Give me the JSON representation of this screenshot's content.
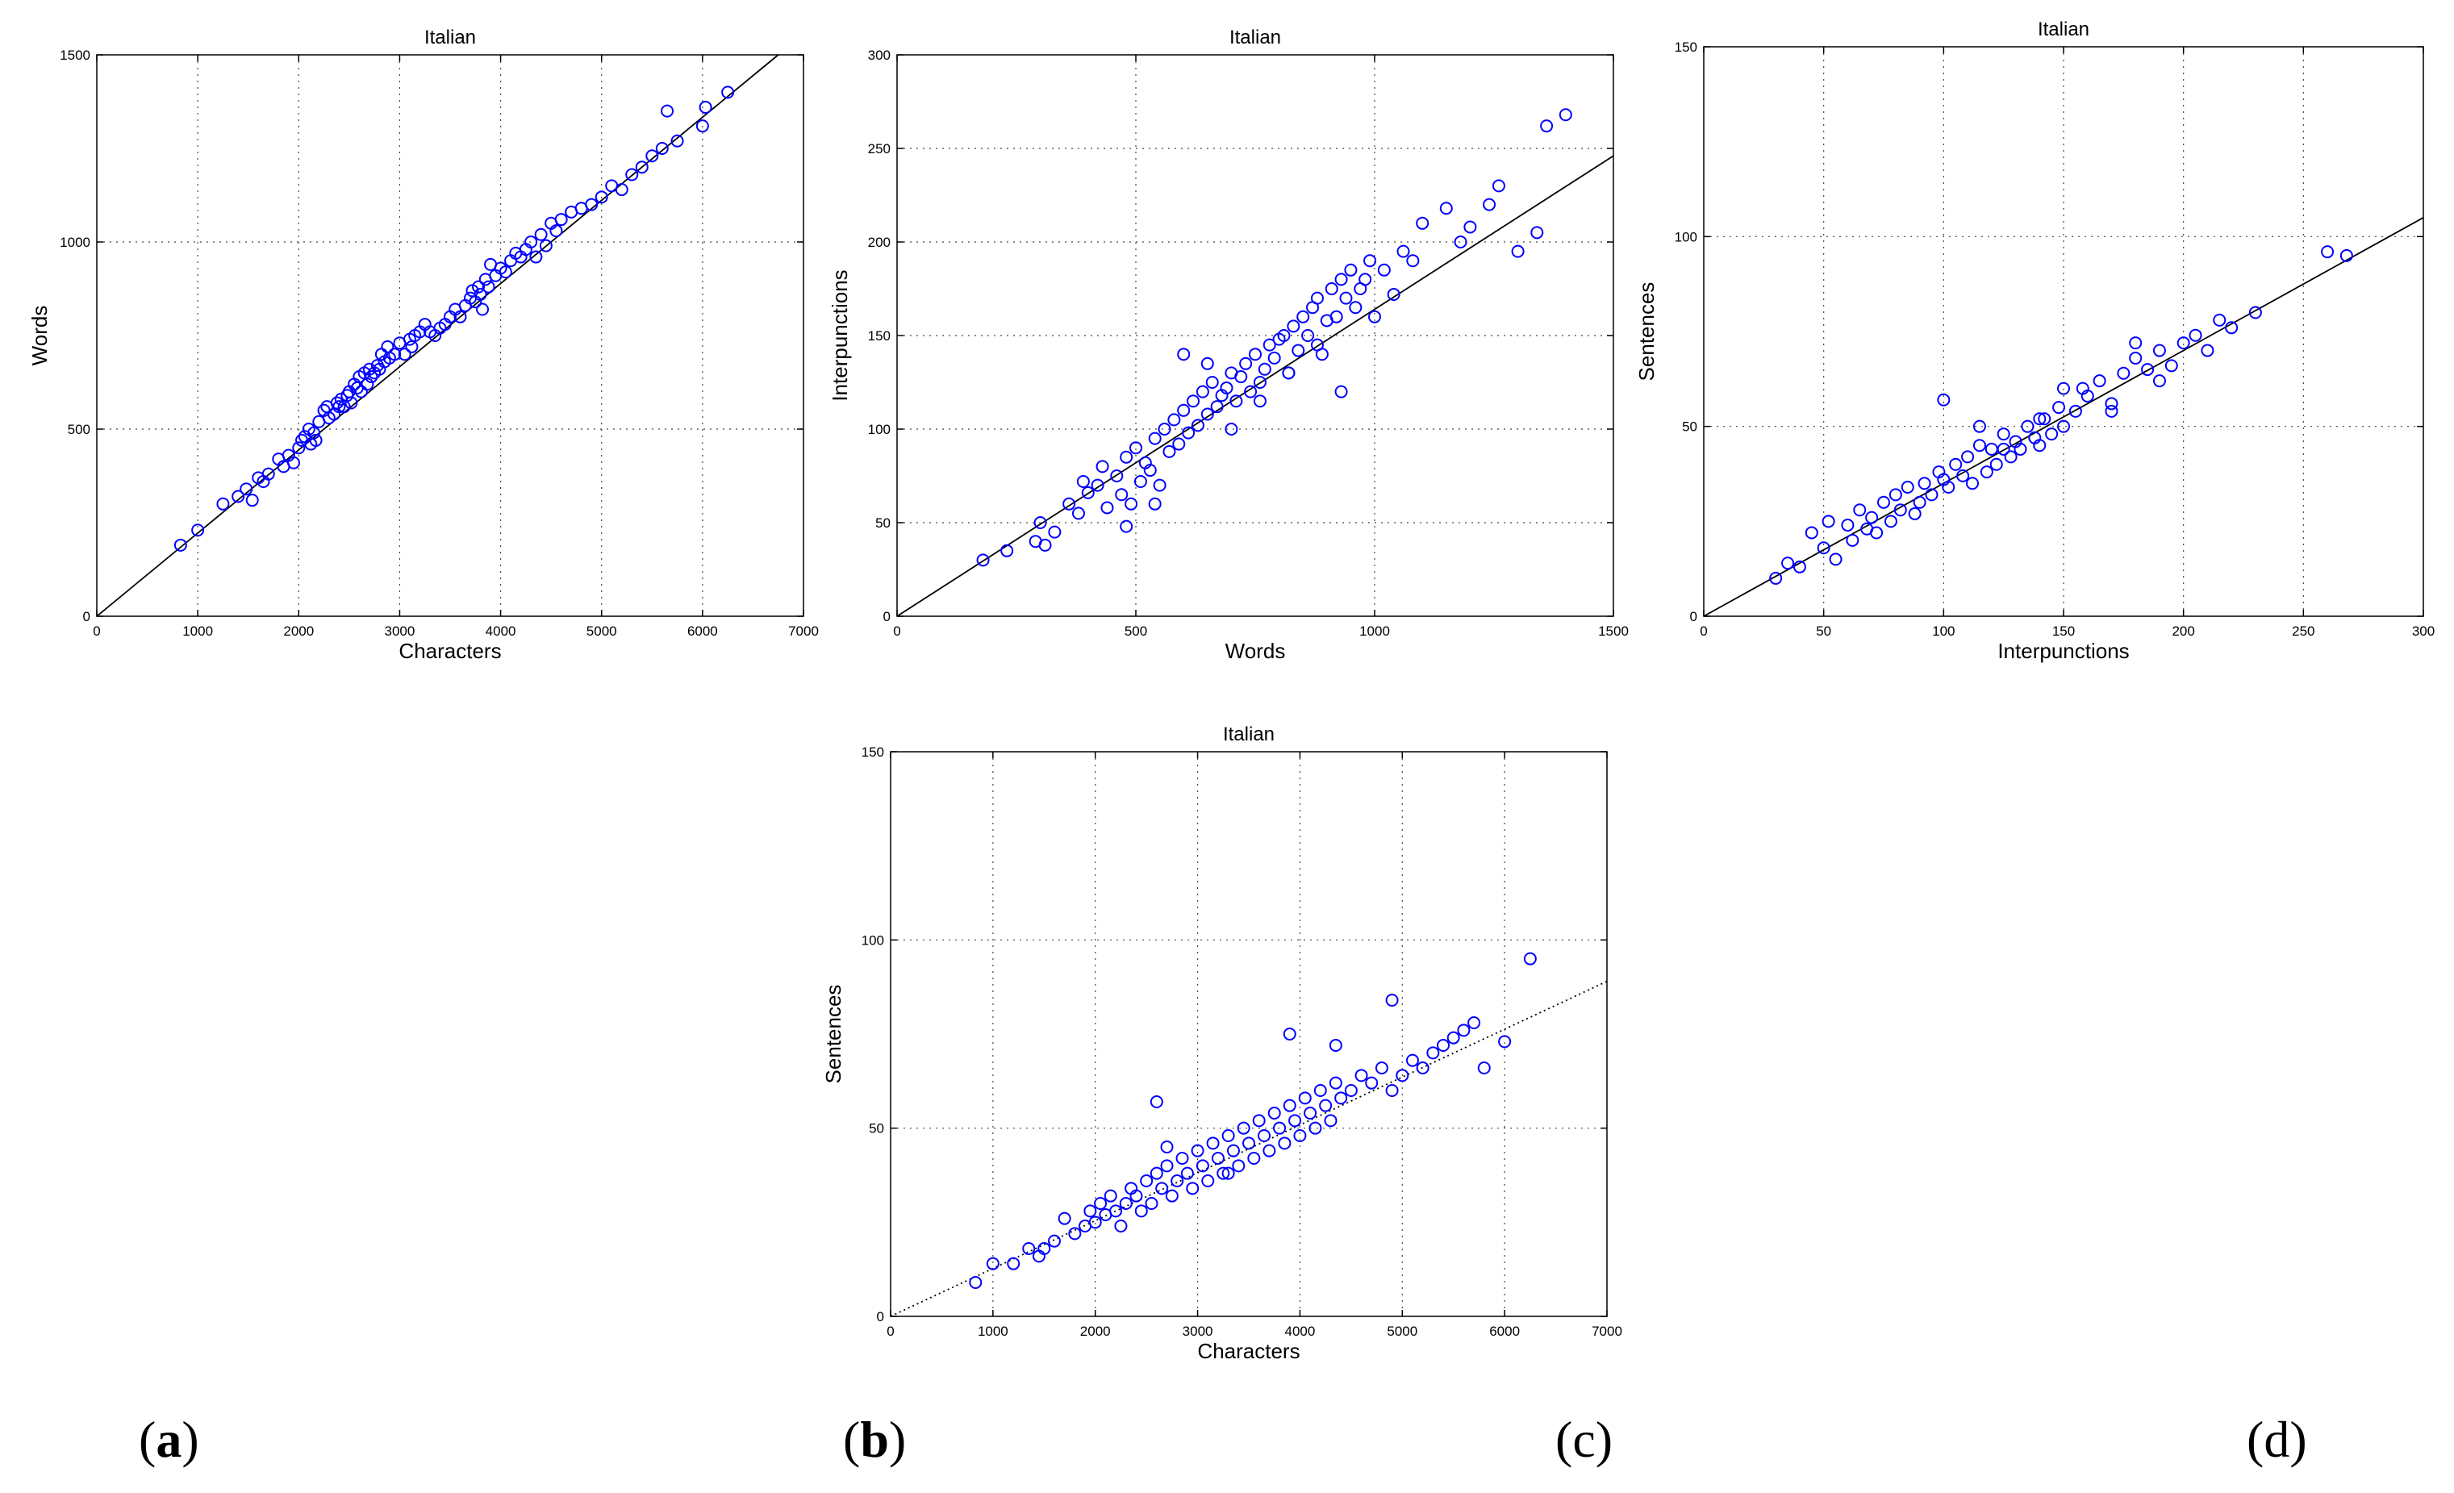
{
  "panel_labels": [
    "a",
    "b",
    "c",
    "d"
  ],
  "colors": {
    "marker": "#0000ff",
    "line": "#000000",
    "grid": "#444444",
    "axis": "#000000"
  },
  "chart_data": [
    {
      "type": "scatter",
      "title": "Italian",
      "xlabel": "Characters",
      "ylabel": "Words",
      "xlim": [
        0,
        7000
      ],
      "ylim": [
        0,
        1500
      ],
      "xticks": [
        "0",
        "1000",
        "2000",
        "3000",
        "4000",
        "5000",
        "6000",
        "7000"
      ],
      "yticks": [
        "0",
        "500",
        "1000",
        "1500"
      ],
      "grid": true,
      "fit_line": {
        "x": [
          0,
          6750
        ],
        "y": [
          0,
          1500
        ],
        "style": "solid"
      },
      "x": [
        830,
        1000,
        1250,
        1400,
        1480,
        1540,
        1600,
        1650,
        1700,
        1800,
        1850,
        1900,
        1950,
        2000,
        2030,
        2060,
        2100,
        2120,
        2150,
        2170,
        2200,
        2250,
        2280,
        2300,
        2350,
        2380,
        2400,
        2420,
        2450,
        2480,
        2500,
        2520,
        2550,
        2580,
        2600,
        2620,
        2650,
        2680,
        2700,
        2720,
        2750,
        2780,
        2800,
        2820,
        2850,
        2880,
        2900,
        2950,
        3000,
        3050,
        3100,
        3120,
        3150,
        3200,
        3250,
        3300,
        3350,
        3400,
        3450,
        3500,
        3550,
        3600,
        3650,
        3700,
        3720,
        3750,
        3780,
        3800,
        3820,
        3850,
        3880,
        3900,
        3950,
        4000,
        4050,
        4100,
        4150,
        4200,
        4250,
        4300,
        4350,
        4400,
        4450,
        4500,
        4550,
        4600,
        4700,
        4800,
        4900,
        5000,
        5100,
        5200,
        5300,
        5400,
        5500,
        5600,
        5650,
        5750,
        6000,
        6030,
        6250
      ],
      "y": [
        190,
        230,
        300,
        320,
        340,
        310,
        370,
        360,
        380,
        420,
        400,
        430,
        410,
        450,
        470,
        480,
        500,
        460,
        490,
        470,
        520,
        550,
        560,
        530,
        540,
        570,
        560,
        580,
        560,
        590,
        600,
        570,
        620,
        610,
        640,
        600,
        650,
        620,
        660,
        640,
        650,
        670,
        660,
        700,
        680,
        720,
        690,
        700,
        730,
        700,
        740,
        720,
        750,
        760,
        780,
        760,
        750,
        770,
        780,
        800,
        820,
        800,
        830,
        850,
        870,
        840,
        880,
        860,
        820,
        900,
        880,
        940,
        910,
        930,
        920,
        950,
        970,
        960,
        980,
        1000,
        960,
        1020,
        990,
        1050,
        1030,
        1060,
        1080,
        1090,
        1100,
        1120,
        1150,
        1140,
        1180,
        1200,
        1230,
        1250,
        1350,
        1270,
        1310,
        1360,
        1400
      ]
    },
    {
      "type": "scatter",
      "title": "Italian",
      "xlabel": "Words",
      "ylabel": "Interpunctions",
      "xlim": [
        0,
        1500
      ],
      "ylim": [
        0,
        300
      ],
      "xticks": [
        "0",
        "500",
        "1000",
        "1500"
      ],
      "yticks": [
        "0",
        "50",
        "100",
        "150",
        "200",
        "250",
        "300"
      ],
      "grid": true,
      "fit_line": {
        "x": [
          0,
          1500
        ],
        "y": [
          0,
          246
        ],
        "style": "solid"
      },
      "x": [
        180,
        230,
        290,
        300,
        310,
        330,
        360,
        380,
        390,
        400,
        420,
        430,
        440,
        460,
        470,
        480,
        490,
        500,
        510,
        520,
        530,
        540,
        550,
        560,
        570,
        580,
        590,
        600,
        610,
        620,
        630,
        640,
        650,
        660,
        670,
        680,
        690,
        700,
        710,
        720,
        730,
        740,
        750,
        760,
        770,
        780,
        790,
        800,
        810,
        820,
        830,
        840,
        850,
        860,
        870,
        880,
        890,
        900,
        910,
        920,
        930,
        940,
        950,
        960,
        970,
        980,
        990,
        1000,
        1020,
        1040,
        1060,
        1080,
        1100,
        1150,
        1180,
        1200,
        1240,
        1260,
        1300,
        1340,
        1360,
        1400,
        700,
        760,
        820,
        880,
        930,
        600,
        650,
        540,
        480
      ],
      "y": [
        30,
        35,
        40,
        50,
        38,
        45,
        60,
        55,
        72,
        66,
        70,
        80,
        58,
        75,
        65,
        85,
        60,
        90,
        72,
        82,
        78,
        95,
        70,
        100,
        88,
        105,
        92,
        110,
        98,
        115,
        102,
        120,
        108,
        125,
        112,
        118,
        122,
        130,
        115,
        128,
        135,
        120,
        140,
        125,
        132,
        145,
        138,
        148,
        150,
        130,
        155,
        142,
        160,
        150,
        165,
        170,
        140,
        158,
        175,
        160,
        180,
        170,
        185,
        165,
        175,
        180,
        190,
        160,
        185,
        172,
        195,
        190,
        210,
        218,
        200,
        208,
        220,
        230,
        195,
        205,
        262,
        268,
        100,
        115,
        130,
        145,
        120,
        140,
        135,
        60,
        48
      ]
    },
    {
      "type": "scatter",
      "title": "Italian",
      "xlabel": "Interpunctions",
      "ylabel": "Sentences",
      "xlim": [
        0,
        300
      ],
      "ylim": [
        0,
        150
      ],
      "xticks": [
        "0",
        "50",
        "100",
        "150",
        "200",
        "250",
        "300"
      ],
      "yticks": [
        "0",
        "50",
        "100",
        "150"
      ],
      "grid": true,
      "fit_line": {
        "x": [
          0,
          300
        ],
        "y": [
          0,
          105
        ],
        "style": "solid"
      },
      "x": [
        30,
        35,
        40,
        45,
        50,
        52,
        55,
        60,
        62,
        65,
        68,
        70,
        72,
        75,
        78,
        80,
        82,
        85,
        88,
        90,
        92,
        95,
        98,
        100,
        102,
        105,
        108,
        110,
        112,
        115,
        118,
        120,
        122,
        125,
        128,
        130,
        132,
        135,
        138,
        140,
        142,
        145,
        148,
        150,
        155,
        158,
        160,
        165,
        170,
        175,
        180,
        185,
        190,
        195,
        200,
        205,
        210,
        215,
        220,
        230,
        260,
        268,
        100,
        115,
        125,
        140,
        150,
        180,
        190,
        170
      ],
      "y": [
        10,
        14,
        13,
        22,
        18,
        25,
        15,
        24,
        20,
        28,
        23,
        26,
        22,
        30,
        25,
        32,
        28,
        34,
        27,
        30,
        35,
        32,
        38,
        36,
        34,
        40,
        37,
        42,
        35,
        45,
        38,
        44,
        40,
        48,
        42,
        46,
        44,
        50,
        47,
        45,
        52,
        48,
        55,
        50,
        54,
        60,
        58,
        62,
        56,
        64,
        68,
        65,
        70,
        66,
        72,
        74,
        70,
        78,
        76,
        80,
        96,
        95,
        57,
        50,
        44,
        52,
        60,
        72,
        62,
        54
      ]
    },
    {
      "type": "scatter",
      "title": "Italian",
      "xlabel": "Characters",
      "ylabel": "Sentences",
      "xlim": [
        0,
        7000
      ],
      "ylim": [
        0,
        150
      ],
      "xticks": [
        "0",
        "1000",
        "2000",
        "3000",
        "4000",
        "5000",
        "6000",
        "7000"
      ],
      "yticks": [
        "0",
        "50",
        "100",
        "150"
      ],
      "grid": true,
      "fit_line": {
        "x": [
          0,
          7000
        ],
        "y": [
          0,
          89
        ],
        "style": "dotted"
      },
      "x": [
        830,
        1000,
        1200,
        1350,
        1450,
        1500,
        1600,
        1700,
        1800,
        1900,
        1950,
        2000,
        2050,
        2100,
        2150,
        2200,
        2250,
        2300,
        2350,
        2400,
        2450,
        2500,
        2550,
        2600,
        2650,
        2700,
        2750,
        2800,
        2850,
        2900,
        2950,
        3000,
        3050,
        3100,
        3150,
        3200,
        3250,
        3300,
        3350,
        3400,
        3450,
        3500,
        3550,
        3600,
        3650,
        3700,
        3750,
        3800,
        3850,
        3900,
        3950,
        4000,
        4050,
        4100,
        4150,
        4200,
        4250,
        4300,
        4350,
        4400,
        4500,
        4600,
        4700,
        4800,
        4900,
        5000,
        5100,
        5200,
        5300,
        5400,
        5500,
        5600,
        5700,
        5800,
        6000,
        6250,
        2600,
        2700,
        3300,
        3900,
        4350,
        4900
      ],
      "y": [
        9,
        14,
        14,
        18,
        16,
        18,
        20,
        26,
        22,
        24,
        28,
        25,
        30,
        27,
        32,
        28,
        24,
        30,
        34,
        32,
        28,
        36,
        30,
        38,
        34,
        40,
        32,
        36,
        42,
        38,
        34,
        44,
        40,
        36,
        46,
        42,
        38,
        48,
        44,
        40,
        50,
        46,
        42,
        52,
        48,
        44,
        54,
        50,
        46,
        56,
        52,
        48,
        58,
        54,
        50,
        60,
        56,
        52,
        62,
        58,
        60,
        64,
        62,
        66,
        60,
        64,
        68,
        66,
        70,
        72,
        74,
        76,
        78,
        66,
        73,
        95,
        57,
        45,
        38,
        75,
        72,
        84
      ]
    }
  ]
}
